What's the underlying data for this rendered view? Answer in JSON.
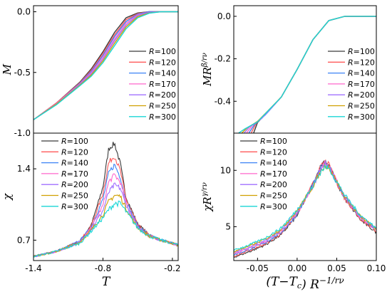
{
  "series_legend": {
    "prefix": "R",
    "names": [
      "=100",
      "=120",
      "=140",
      "=170",
      "=200",
      "=250",
      "=300"
    ],
    "colors": [
      "#3a3a3a",
      "#ff5a5a",
      "#3b82f6",
      "#ff66cc",
      "#a070ff",
      "#d0a000",
      "#19d6d6"
    ]
  },
  "chart_data": [
    {
      "type": "line",
      "panel": "top-left",
      "ylabel": "M",
      "xlim": [
        -1.4,
        -0.15
      ],
      "ylim": [
        -1.0,
        0.05
      ],
      "yticks": [
        {
          "v": 0.0,
          "t": "0.0"
        },
        {
          "v": -0.5,
          "t": "-0.5"
        },
        {
          "v": -1.0,
          "t": "-1.0"
        }
      ],
      "series": [
        {
          "name": "R=100",
          "x": [
            -1.4,
            -1.2,
            -1.0,
            -0.9,
            -0.8,
            -0.7,
            -0.6,
            -0.5,
            -0.4,
            -0.3,
            -0.2,
            -0.15
          ],
          "y": [
            -0.89,
            -0.75,
            -0.58,
            -0.47,
            -0.33,
            -0.17,
            -0.05,
            -0.01,
            0.0,
            0.0,
            0.0,
            0.0
          ]
        },
        {
          "name": "R=120",
          "x": [
            -1.4,
            -1.2,
            -1.0,
            -0.9,
            -0.8,
            -0.7,
            -0.6,
            -0.5,
            -0.4,
            -0.3,
            -0.2,
            -0.15
          ],
          "y": [
            -0.89,
            -0.75,
            -0.585,
            -0.48,
            -0.345,
            -0.19,
            -0.065,
            -0.015,
            0.0,
            0.0,
            0.0,
            0.0
          ]
        },
        {
          "name": "R=140",
          "x": [
            -1.4,
            -1.2,
            -1.0,
            -0.9,
            -0.8,
            -0.7,
            -0.6,
            -0.5,
            -0.4,
            -0.3,
            -0.2,
            -0.15
          ],
          "y": [
            -0.89,
            -0.755,
            -0.59,
            -0.49,
            -0.36,
            -0.205,
            -0.08,
            -0.02,
            0.0,
            0.0,
            0.0,
            0.0
          ]
        },
        {
          "name": "R=170",
          "x": [
            -1.4,
            -1.2,
            -1.0,
            -0.9,
            -0.8,
            -0.7,
            -0.6,
            -0.5,
            -0.4,
            -0.3,
            -0.2,
            -0.15
          ],
          "y": [
            -0.89,
            -0.755,
            -0.595,
            -0.5,
            -0.375,
            -0.225,
            -0.095,
            -0.025,
            -0.005,
            0.0,
            0.0,
            0.0
          ]
        },
        {
          "name": "R=200",
          "x": [
            -1.4,
            -1.2,
            -1.0,
            -0.9,
            -0.8,
            -0.7,
            -0.6,
            -0.5,
            -0.4,
            -0.3,
            -0.2,
            -0.15
          ],
          "y": [
            -0.89,
            -0.76,
            -0.6,
            -0.51,
            -0.39,
            -0.24,
            -0.11,
            -0.03,
            -0.005,
            0.0,
            0.0,
            0.0
          ]
        },
        {
          "name": "R=250",
          "x": [
            -1.4,
            -1.2,
            -1.0,
            -0.9,
            -0.8,
            -0.7,
            -0.6,
            -0.5,
            -0.4,
            -0.3,
            -0.2,
            -0.15
          ],
          "y": [
            -0.89,
            -0.76,
            -0.605,
            -0.52,
            -0.405,
            -0.26,
            -0.125,
            -0.04,
            -0.01,
            0.0,
            0.0,
            0.0
          ]
        },
        {
          "name": "R=300",
          "x": [
            -1.4,
            -1.2,
            -1.0,
            -0.9,
            -0.8,
            -0.7,
            -0.6,
            -0.5,
            -0.4,
            -0.3,
            -0.2,
            -0.15
          ],
          "y": [
            -0.89,
            -0.765,
            -0.61,
            -0.53,
            -0.42,
            -0.28,
            -0.14,
            -0.05,
            -0.012,
            0.0,
            0.0,
            0.0
          ]
        }
      ]
    },
    {
      "type": "line",
      "panel": "top-right",
      "ylabel": "MR^{β/rν}",
      "xlim": [
        -0.08,
        0.1
      ],
      "ylim": [
        -0.55,
        0.05
      ],
      "yticks": [
        {
          "v": 0.0,
          "t": "0.0"
        },
        {
          "v": -0.2,
          "t": "-0.2"
        },
        {
          "v": -0.4,
          "t": "-0.4"
        }
      ],
      "series": [
        {
          "name": "R=100",
          "x": [
            -0.055,
            -0.05,
            -0.04,
            -0.02,
            0.0,
            0.02,
            0.04,
            0.06,
            0.08,
            0.1
          ],
          "y": [
            -0.55,
            -0.5,
            -0.46,
            -0.38,
            -0.25,
            -0.11,
            -0.02,
            0.0,
            0.0,
            0.0
          ]
        },
        {
          "name": "R=120",
          "x": [
            -0.058,
            -0.052,
            -0.04,
            -0.02,
            0.0,
            0.02,
            0.04,
            0.06,
            0.08,
            0.1
          ],
          "y": [
            -0.55,
            -0.505,
            -0.462,
            -0.38,
            -0.25,
            -0.11,
            -0.02,
            0.0,
            0.0,
            0.0
          ]
        },
        {
          "name": "R=140",
          "x": [
            -0.061,
            -0.054,
            -0.04,
            -0.02,
            0.0,
            0.02,
            0.04,
            0.06,
            0.08,
            0.1
          ],
          "y": [
            -0.55,
            -0.51,
            -0.464,
            -0.38,
            -0.25,
            -0.11,
            -0.02,
            0.0,
            0.0,
            0.0
          ]
        },
        {
          "name": "R=170",
          "x": [
            -0.064,
            -0.057,
            -0.045,
            -0.02,
            0.0,
            0.02,
            0.04,
            0.06,
            0.08,
            0.1
          ],
          "y": [
            -0.55,
            -0.515,
            -0.48,
            -0.38,
            -0.25,
            -0.11,
            -0.02,
            0.0,
            0.0,
            0.0
          ]
        },
        {
          "name": "R=200",
          "x": [
            -0.067,
            -0.06,
            -0.045,
            -0.02,
            0.0,
            0.02,
            0.04,
            0.06,
            0.08,
            0.1
          ],
          "y": [
            -0.55,
            -0.52,
            -0.482,
            -0.38,
            -0.25,
            -0.11,
            -0.02,
            0.0,
            0.0,
            0.0
          ]
        },
        {
          "name": "R=250",
          "x": [
            -0.07,
            -0.063,
            -0.05,
            -0.02,
            0.0,
            0.02,
            0.04,
            0.06,
            0.08,
            0.1
          ],
          "y": [
            -0.55,
            -0.525,
            -0.495,
            -0.38,
            -0.25,
            -0.11,
            -0.02,
            0.0,
            0.0,
            0.0
          ]
        },
        {
          "name": "R=300",
          "x": [
            -0.074,
            -0.066,
            -0.05,
            -0.02,
            0.0,
            0.02,
            0.04,
            0.06,
            0.08,
            0.1
          ],
          "y": [
            -0.55,
            -0.53,
            -0.497,
            -0.38,
            -0.25,
            -0.11,
            -0.02,
            0.0,
            0.0,
            0.0
          ]
        }
      ]
    },
    {
      "type": "line",
      "panel": "bottom-left",
      "ylabel": "χ",
      "xlabel": "T",
      "xlim": [
        -1.4,
        -0.15
      ],
      "ylim": [
        0.5,
        1.75
      ],
      "xticks": [
        {
          "v": -1.4,
          "t": "-1.4"
        },
        {
          "v": -0.8,
          "t": "-0.8"
        },
        {
          "v": -0.2,
          "t": "-0.2"
        }
      ],
      "yticks": [
        {
          "v": 1.4,
          "t": "1.4"
        },
        {
          "v": 0.7,
          "t": "0.7"
        }
      ],
      "series": [
        {
          "name": "R=100",
          "x": [
            -1.4,
            -1.2,
            -1.0,
            -0.9,
            -0.8,
            -0.75,
            -0.7,
            -0.65,
            -0.6,
            -0.5,
            -0.4,
            -0.3,
            -0.2,
            -0.15
          ],
          "y": [
            0.54,
            0.59,
            0.69,
            0.85,
            1.22,
            1.6,
            1.65,
            1.45,
            1.12,
            0.86,
            0.75,
            0.7,
            0.67,
            0.65
          ]
        },
        {
          "name": "R=120",
          "x": [
            -1.4,
            -1.2,
            -1.0,
            -0.9,
            -0.8,
            -0.75,
            -0.7,
            -0.65,
            -0.6,
            -0.5,
            -0.4,
            -0.3,
            -0.2,
            -0.15
          ],
          "y": [
            0.54,
            0.59,
            0.69,
            0.84,
            1.16,
            1.46,
            1.53,
            1.38,
            1.1,
            0.85,
            0.75,
            0.7,
            0.67,
            0.65
          ]
        },
        {
          "name": "R=140",
          "x": [
            -1.4,
            -1.2,
            -1.0,
            -0.9,
            -0.8,
            -0.75,
            -0.7,
            -0.65,
            -0.6,
            -0.5,
            -0.4,
            -0.3,
            -0.2,
            -0.15
          ],
          "y": [
            0.54,
            0.59,
            0.69,
            0.83,
            1.1,
            1.36,
            1.44,
            1.32,
            1.08,
            0.84,
            0.75,
            0.7,
            0.67,
            0.65
          ]
        },
        {
          "name": "R=170",
          "x": [
            -1.4,
            -1.2,
            -1.0,
            -0.9,
            -0.8,
            -0.75,
            -0.7,
            -0.65,
            -0.6,
            -0.5,
            -0.4,
            -0.3,
            -0.2,
            -0.15
          ],
          "y": [
            0.54,
            0.59,
            0.68,
            0.82,
            1.04,
            1.27,
            1.34,
            1.27,
            1.06,
            0.83,
            0.74,
            0.7,
            0.67,
            0.65
          ]
        },
        {
          "name": "R=200",
          "x": [
            -1.4,
            -1.2,
            -1.0,
            -0.9,
            -0.8,
            -0.75,
            -0.7,
            -0.65,
            -0.6,
            -0.5,
            -0.4,
            -0.3,
            -0.2,
            -0.15
          ],
          "y": [
            0.54,
            0.59,
            0.68,
            0.81,
            0.99,
            1.17,
            1.24,
            1.21,
            1.04,
            0.83,
            0.74,
            0.7,
            0.67,
            0.65
          ]
        },
        {
          "name": "R=250",
          "x": [
            -1.4,
            -1.2,
            -1.0,
            -0.9,
            -0.8,
            -0.75,
            -0.7,
            -0.65,
            -0.6,
            -0.5,
            -0.4,
            -0.3,
            -0.2,
            -0.15
          ],
          "y": [
            0.54,
            0.59,
            0.68,
            0.8,
            0.95,
            1.08,
            1.14,
            1.13,
            1.01,
            0.82,
            0.74,
            0.7,
            0.67,
            0.65
          ]
        },
        {
          "name": "R=300",
          "x": [
            -1.4,
            -1.2,
            -1.0,
            -0.9,
            -0.8,
            -0.75,
            -0.7,
            -0.65,
            -0.6,
            -0.5,
            -0.4,
            -0.3,
            -0.2,
            -0.15
          ],
          "y": [
            0.54,
            0.59,
            0.67,
            0.79,
            0.92,
            1.0,
            1.06,
            1.06,
            0.98,
            0.82,
            0.74,
            0.7,
            0.67,
            0.65
          ]
        }
      ]
    },
    {
      "type": "line",
      "panel": "bottom-right",
      "ylabel": "χR^{γ/rν}",
      "xlabel": "(T−T_c) R^{−1/rν}",
      "xlim": [
        -0.08,
        0.1
      ],
      "ylim": [
        2.0,
        13.3
      ],
      "xticks": [
        {
          "v": -0.05,
          "t": "-0.05"
        },
        {
          "v": 0.0,
          "t": "0.00"
        },
        {
          "v": 0.05,
          "t": "0.05"
        },
        {
          "v": 0.1,
          "t": "0.10"
        }
      ],
      "yticks": [
        {
          "v": 10,
          "t": "10"
        },
        {
          "v": 5,
          "t": "5"
        }
      ],
      "series": [
        {
          "name": "R=100",
          "x": [
            -0.08,
            -0.06,
            -0.04,
            -0.02,
            0.0,
            0.02,
            0.03,
            0.035,
            0.04,
            0.05,
            0.06,
            0.08,
            0.1
          ],
          "y": [
            2.3,
            2.8,
            3.4,
            4.3,
            6.0,
            8.8,
            10.4,
            10.9,
            10.5,
            8.9,
            7.5,
            5.6,
            4.5
          ]
        },
        {
          "name": "R=120",
          "x": [
            -0.08,
            -0.06,
            -0.04,
            -0.02,
            0.0,
            0.02,
            0.03,
            0.035,
            0.04,
            0.05,
            0.06,
            0.08,
            0.1
          ],
          "y": [
            2.4,
            2.9,
            3.5,
            4.4,
            6.1,
            8.8,
            10.3,
            10.8,
            10.5,
            8.9,
            7.5,
            5.7,
            4.6
          ]
        },
        {
          "name": "R=140",
          "x": [
            -0.08,
            -0.06,
            -0.04,
            -0.02,
            0.0,
            0.02,
            0.03,
            0.035,
            0.04,
            0.05,
            0.06,
            0.08,
            0.1
          ],
          "y": [
            2.5,
            3.0,
            3.6,
            4.5,
            6.1,
            8.7,
            10.2,
            10.7,
            10.4,
            8.9,
            7.6,
            5.8,
            4.7
          ]
        },
        {
          "name": "R=170",
          "x": [
            -0.08,
            -0.06,
            -0.04,
            -0.02,
            0.0,
            0.02,
            0.03,
            0.035,
            0.04,
            0.05,
            0.06,
            0.08,
            0.1
          ],
          "y": [
            2.6,
            3.1,
            3.7,
            4.6,
            6.2,
            8.7,
            10.1,
            10.6,
            10.4,
            9.0,
            7.6,
            5.8,
            4.7
          ]
        },
        {
          "name": "R=200",
          "x": [
            -0.08,
            -0.06,
            -0.04,
            -0.02,
            0.0,
            0.02,
            0.03,
            0.035,
            0.04,
            0.05,
            0.06,
            0.08,
            0.1
          ],
          "y": [
            2.7,
            3.2,
            3.8,
            4.7,
            6.3,
            8.6,
            10.0,
            10.5,
            10.3,
            9.0,
            7.7,
            5.9,
            4.8
          ]
        },
        {
          "name": "R=250",
          "x": [
            -0.08,
            -0.06,
            -0.04,
            -0.02,
            0.0,
            0.02,
            0.03,
            0.035,
            0.04,
            0.05,
            0.06,
            0.08,
            0.1
          ],
          "y": [
            2.8,
            3.3,
            3.9,
            4.8,
            6.4,
            8.6,
            9.9,
            10.4,
            10.3,
            9.0,
            7.7,
            5.9,
            4.8
          ]
        },
        {
          "name": "R=300",
          "x": [
            -0.08,
            -0.06,
            -0.04,
            -0.02,
            0.0,
            0.02,
            0.03,
            0.035,
            0.04,
            0.05,
            0.06,
            0.08,
            0.1
          ],
          "y": [
            2.9,
            3.4,
            4.0,
            4.9,
            6.5,
            8.6,
            9.9,
            10.3,
            10.2,
            9.0,
            7.8,
            6.0,
            4.9
          ]
        }
      ]
    }
  ]
}
